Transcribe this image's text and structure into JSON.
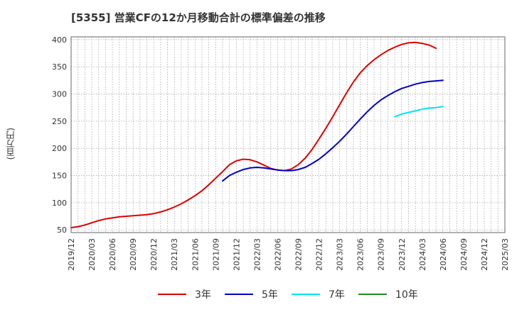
{
  "chart_data": {
    "type": "line",
    "title": "[5355]  営業CFの12か月移動合計の標準偏差の推移",
    "ylabel": "(百万円)",
    "xlabel": "",
    "ylim": [
      45,
      405
    ],
    "yticks": [
      50,
      100,
      150,
      200,
      250,
      300,
      350,
      400
    ],
    "xticks": [
      "2019/12",
      "2020/03",
      "2020/06",
      "2020/09",
      "2020/12",
      "2021/03",
      "2021/06",
      "2021/09",
      "2021/12",
      "2022/03",
      "2022/06",
      "2022/09",
      "2022/12",
      "2023/03",
      "2023/06",
      "2023/09",
      "2023/12",
      "2024/03",
      "2024/06",
      "2024/09",
      "2024/12",
      "2025/03"
    ],
    "x_range": [
      "2019/12",
      "2025/03"
    ],
    "grid": true,
    "legend_position": "bottom",
    "series": [
      {
        "name": "3年",
        "color": "#dd0000",
        "points": [
          [
            "2019/12",
            54
          ],
          [
            "2020/01",
            56
          ],
          [
            "2020/02",
            59
          ],
          [
            "2020/03",
            63
          ],
          [
            "2020/04",
            67
          ],
          [
            "2020/05",
            70
          ],
          [
            "2020/06",
            72
          ],
          [
            "2020/07",
            74
          ],
          [
            "2020/08",
            75
          ],
          [
            "2020/09",
            76
          ],
          [
            "2020/10",
            77
          ],
          [
            "2020/11",
            78
          ],
          [
            "2020/12",
            80
          ],
          [
            "2021/01",
            83
          ],
          [
            "2021/02",
            87
          ],
          [
            "2021/03",
            92
          ],
          [
            "2021/04",
            98
          ],
          [
            "2021/05",
            105
          ],
          [
            "2021/06",
            113
          ],
          [
            "2021/07",
            122
          ],
          [
            "2021/08",
            133
          ],
          [
            "2021/09",
            145
          ],
          [
            "2021/10",
            157
          ],
          [
            "2021/11",
            170
          ],
          [
            "2021/12",
            177
          ],
          [
            "2022/01",
            180
          ],
          [
            "2022/02",
            179
          ],
          [
            "2022/03",
            175
          ],
          [
            "2022/04",
            169
          ],
          [
            "2022/05",
            163
          ],
          [
            "2022/06",
            160
          ],
          [
            "2022/07",
            159
          ],
          [
            "2022/08",
            162
          ],
          [
            "2022/09",
            170
          ],
          [
            "2022/10",
            182
          ],
          [
            "2022/11",
            198
          ],
          [
            "2022/12",
            217
          ],
          [
            "2023/01",
            237
          ],
          [
            "2023/02",
            258
          ],
          [
            "2023/03",
            280
          ],
          [
            "2023/04",
            302
          ],
          [
            "2023/05",
            322
          ],
          [
            "2023/06",
            339
          ],
          [
            "2023/07",
            352
          ],
          [
            "2023/08",
            363
          ],
          [
            "2023/09",
            372
          ],
          [
            "2023/10",
            380
          ],
          [
            "2023/11",
            386
          ],
          [
            "2023/12",
            391
          ],
          [
            "2024/01",
            394
          ],
          [
            "2024/02",
            395
          ],
          [
            "2024/03",
            393
          ],
          [
            "2024/04",
            390
          ],
          [
            "2024/05",
            384
          ]
        ]
      },
      {
        "name": "5年",
        "color": "#0000cc",
        "points": [
          [
            "2021/10",
            140
          ],
          [
            "2021/11",
            150
          ],
          [
            "2021/12",
            156
          ],
          [
            "2022/01",
            161
          ],
          [
            "2022/02",
            164
          ],
          [
            "2022/03",
            165
          ],
          [
            "2022/04",
            164
          ],
          [
            "2022/05",
            162
          ],
          [
            "2022/06",
            160
          ],
          [
            "2022/07",
            159
          ],
          [
            "2022/08",
            159
          ],
          [
            "2022/09",
            161
          ],
          [
            "2022/10",
            165
          ],
          [
            "2022/11",
            172
          ],
          [
            "2022/12",
            180
          ],
          [
            "2023/01",
            190
          ],
          [
            "2023/02",
            201
          ],
          [
            "2023/03",
            213
          ],
          [
            "2023/04",
            226
          ],
          [
            "2023/05",
            240
          ],
          [
            "2023/06",
            254
          ],
          [
            "2023/07",
            267
          ],
          [
            "2023/08",
            279
          ],
          [
            "2023/09",
            289
          ],
          [
            "2023/10",
            297
          ],
          [
            "2023/11",
            304
          ],
          [
            "2023/12",
            310
          ],
          [
            "2024/01",
            314
          ],
          [
            "2024/02",
            318
          ],
          [
            "2024/03",
            321
          ],
          [
            "2024/04",
            323
          ],
          [
            "2024/05",
            324
          ],
          [
            "2024/06",
            325
          ]
        ]
      },
      {
        "name": "7年",
        "color": "#00e5ee",
        "points": [
          [
            "2023/11",
            258
          ],
          [
            "2023/12",
            263
          ],
          [
            "2024/01",
            266
          ],
          [
            "2024/02",
            269
          ],
          [
            "2024/03",
            272
          ],
          [
            "2024/04",
            274
          ],
          [
            "2024/05",
            275
          ],
          [
            "2024/06",
            277
          ]
        ]
      },
      {
        "name": "10年",
        "color": "#228b22",
        "points": []
      }
    ]
  }
}
